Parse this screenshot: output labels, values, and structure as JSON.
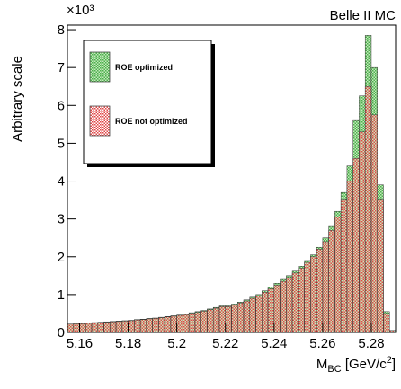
{
  "chart_data": {
    "type": "histogram",
    "title": "Belle II MC",
    "y_label": "Arbitrary scale",
    "y_multiplier": "×10³",
    "x_label": {
      "base": "M",
      "sub": "BC",
      "unit": " [GeV/c",
      "sup": "2",
      "close": "]"
    },
    "bins": [
      5.155,
      5.1575,
      5.16,
      5.1625,
      5.165,
      5.1675,
      5.17,
      5.1725,
      5.175,
      5.1775,
      5.18,
      5.1825,
      5.185,
      5.1875,
      5.19,
      5.1925,
      5.195,
      5.1975,
      5.2,
      5.2025,
      5.205,
      5.2075,
      5.21,
      5.2125,
      5.215,
      5.2175,
      5.22,
      5.2225,
      5.225,
      5.2275,
      5.23,
      5.2325,
      5.235,
      5.2375,
      5.24,
      5.2425,
      5.245,
      5.2475,
      5.25,
      5.2525,
      5.255,
      5.2575,
      5.26,
      5.2625,
      5.265,
      5.2675,
      5.27,
      5.2725,
      5.275,
      5.2775,
      5.28,
      5.2825,
      5.285,
      5.2875,
      5.29
    ],
    "series": [
      {
        "name": "ROE optimized",
        "color": "#4caf4c",
        "values": [
          0.22,
          0.23,
          0.24,
          0.25,
          0.26,
          0.27,
          0.28,
          0.29,
          0.3,
          0.31,
          0.32,
          0.34,
          0.35,
          0.37,
          0.38,
          0.4,
          0.42,
          0.44,
          0.46,
          0.49,
          0.52,
          0.55,
          0.58,
          0.62,
          0.66,
          0.7,
          0.7,
          0.75,
          0.8,
          0.86,
          0.93,
          1.0,
          1.1,
          1.2,
          1.3,
          1.4,
          1.5,
          1.62,
          1.75,
          1.9,
          2.05,
          2.25,
          2.5,
          2.8,
          3.2,
          3.7,
          4.4,
          5.6,
          6.25,
          7.85,
          7.0,
          3.9,
          0.55,
          0.05
        ]
      },
      {
        "name": "ROE not optimized",
        "color": "#e04848",
        "values": [
          0.22,
          0.23,
          0.23,
          0.24,
          0.25,
          0.26,
          0.27,
          0.28,
          0.29,
          0.3,
          0.31,
          0.33,
          0.34,
          0.36,
          0.37,
          0.39,
          0.41,
          0.43,
          0.45,
          0.47,
          0.5,
          0.53,
          0.56,
          0.6,
          0.64,
          0.68,
          0.68,
          0.73,
          0.78,
          0.83,
          0.9,
          0.97,
          1.06,
          1.15,
          1.25,
          1.35,
          1.45,
          1.57,
          1.7,
          1.85,
          2.0,
          2.2,
          2.4,
          2.7,
          3.05,
          3.5,
          4.0,
          4.6,
          5.3,
          6.5,
          5.75,
          3.5,
          0.5,
          0.05
        ]
      }
    ],
    "xlim": [
      5.155,
      5.29
    ],
    "ylim": [
      0,
      8.12
    ],
    "xticks": [
      5.16,
      5.18,
      5.2,
      5.22,
      5.24,
      5.26,
      5.28
    ],
    "yticks": [
      0,
      1,
      2,
      3,
      4,
      5,
      6,
      7,
      8
    ]
  }
}
